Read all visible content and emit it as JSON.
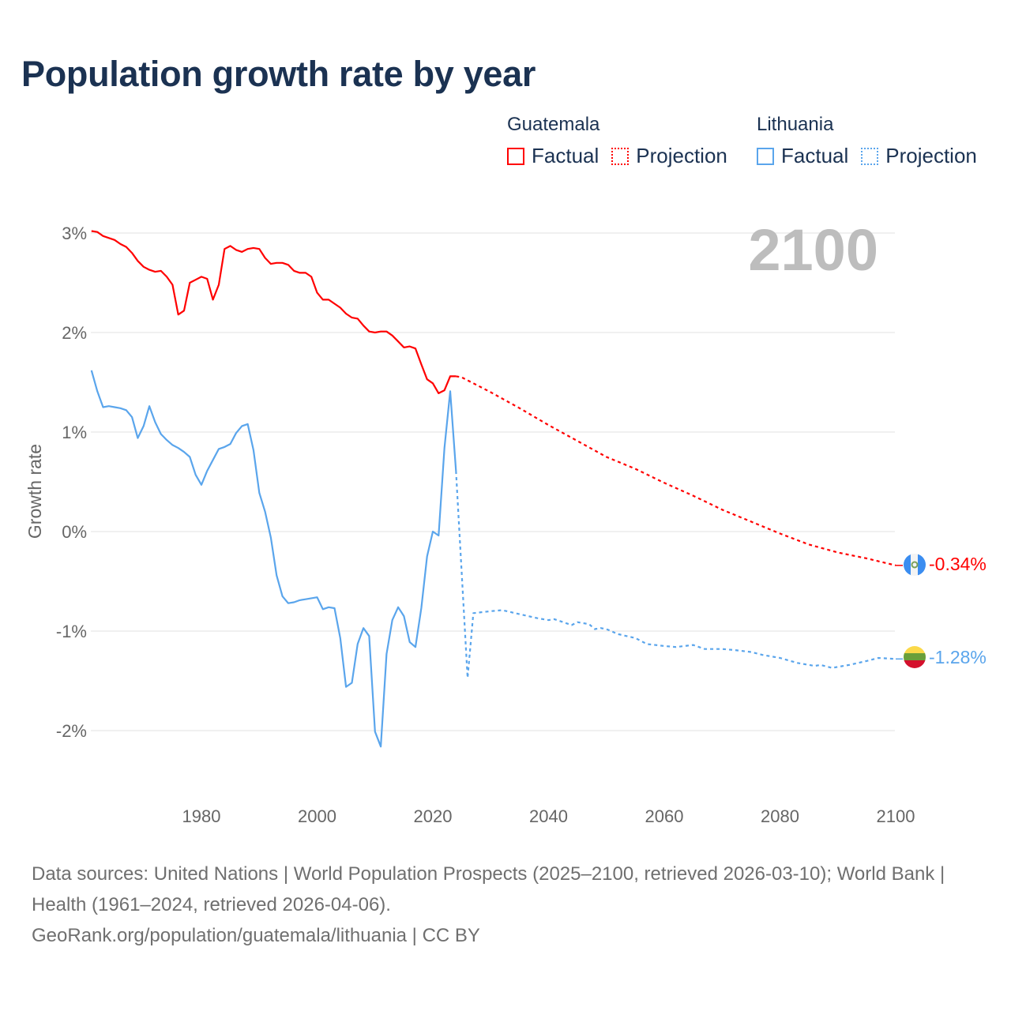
{
  "title": "Population growth rate by year",
  "legend": {
    "groups": [
      {
        "country": "Guatemala",
        "factual": "Factual",
        "projection": "Projection",
        "color": "#ff0000"
      },
      {
        "country": "Lithuania",
        "factual": "Factual",
        "projection": "Projection",
        "color": "#5aa5ec"
      }
    ]
  },
  "year_overlay": "2100",
  "end_labels": {
    "guatemala": "-0.34%",
    "lithuania": "-1.28%"
  },
  "footer": {
    "sources": "Data sources: United Nations | World Population Prospects (2025–2100, retrieved 2026-03-10); World Bank | Health (1961–2024, retrieved 2026-04-06).",
    "link": "GeoRank.org/population/guatemala/lithuania | CC BY"
  },
  "chart_data": {
    "type": "line",
    "title": "Population growth rate by year",
    "xlabel": "",
    "ylabel": "Growth rate",
    "xlim": [
      1961,
      2100
    ],
    "ylim": [
      -2.6,
      3.1
    ],
    "grid": true,
    "x_ticks": [
      1980,
      2000,
      2020,
      2040,
      2060,
      2080,
      2100
    ],
    "x_tick_labels": [
      "1980",
      "2000",
      "2020",
      "2040",
      "2060",
      "2080",
      "2100"
    ],
    "y_ticks": [
      3,
      2,
      1,
      0,
      -1,
      -2
    ],
    "y_tick_labels": [
      "3%",
      "2%",
      "1%",
      "0%",
      "-1%",
      "-2%"
    ],
    "legend_placement": "top-right",
    "series": [
      {
        "name": "Guatemala Factual",
        "color": "#ff0000",
        "style": "solid",
        "x_start": 1961,
        "values": [
          3.02,
          3.01,
          2.97,
          2.95,
          2.93,
          2.89,
          2.86,
          2.8,
          2.72,
          2.66,
          2.63,
          2.61,
          2.62,
          2.56,
          2.48,
          2.18,
          2.22,
          2.5,
          2.53,
          2.56,
          2.54,
          2.33,
          2.48,
          2.84,
          2.87,
          2.83,
          2.81,
          2.84,
          2.85,
          2.84,
          2.75,
          2.69,
          2.7,
          2.7,
          2.68,
          2.62,
          2.6,
          2.6,
          2.56,
          2.4,
          2.33,
          2.33,
          2.29,
          2.25,
          2.19,
          2.15,
          2.14,
          2.07,
          2.01,
          2.0,
          2.01,
          2.01,
          1.97,
          1.91,
          1.85,
          1.86,
          1.84,
          1.68,
          1.53,
          1.49,
          1.39,
          1.42,
          1.56,
          1.56
        ]
      },
      {
        "name": "Guatemala Projection",
        "color": "#ff0000",
        "style": "dotted",
        "x": [
          2024,
          2025,
          2030,
          2035,
          2040,
          2045,
          2050,
          2055,
          2060,
          2065,
          2070,
          2075,
          2080,
          2085,
          2090,
          2095,
          2100
        ],
        "values": [
          1.56,
          1.55,
          1.4,
          1.24,
          1.07,
          0.91,
          0.75,
          0.63,
          0.49,
          0.36,
          0.22,
          0.1,
          -0.02,
          -0.13,
          -0.21,
          -0.27,
          -0.34
        ]
      },
      {
        "name": "Lithuania Factual",
        "color": "#5aa5ec",
        "style": "solid",
        "x_start": 1961,
        "values": [
          1.62,
          1.41,
          1.25,
          1.26,
          1.25,
          1.24,
          1.22,
          1.15,
          0.94,
          1.06,
          1.26,
          1.1,
          0.98,
          0.92,
          0.87,
          0.84,
          0.8,
          0.75,
          0.57,
          0.47,
          0.61,
          0.72,
          0.83,
          0.85,
          0.88,
          0.99,
          1.06,
          1.08,
          0.82,
          0.39,
          0.2,
          -0.06,
          -0.44,
          -0.65,
          -0.72,
          -0.71,
          -0.69,
          -0.68,
          -0.67,
          -0.66,
          -0.78,
          -0.76,
          -0.77,
          -1.07,
          -1.56,
          -1.52,
          -1.13,
          -0.97,
          -1.05,
          -2.01,
          -2.16,
          -1.23,
          -0.89,
          -0.76,
          -0.85,
          -1.11,
          -1.16,
          -0.77,
          -0.25,
          0.0,
          -0.04,
          0.84,
          1.41,
          0.61
        ]
      },
      {
        "name": "Lithuania Projection",
        "color": "#5aa5ec",
        "style": "dotted",
        "x": [
          2024,
          2026,
          2027,
          2030,
          2032,
          2035,
          2038,
          2040,
          2041,
          2043,
          2044,
          2045,
          2047,
          2048,
          2049,
          2050,
          2052,
          2055,
          2057,
          2060,
          2062,
          2065,
          2067,
          2070,
          2072,
          2075,
          2077,
          2080,
          2083,
          2086,
          2087,
          2089,
          2092,
          2095,
          2097,
          2100
        ],
        "values": [
          0.61,
          -1.47,
          -0.82,
          -0.8,
          -0.79,
          -0.83,
          -0.87,
          -0.89,
          -0.88,
          -0.92,
          -0.94,
          -0.91,
          -0.93,
          -0.98,
          -0.97,
          -0.98,
          -1.03,
          -1.07,
          -1.13,
          -1.15,
          -1.16,
          -1.14,
          -1.18,
          -1.18,
          -1.19,
          -1.21,
          -1.24,
          -1.27,
          -1.32,
          -1.35,
          -1.34,
          -1.37,
          -1.34,
          -1.3,
          -1.27,
          -1.28
        ]
      }
    ]
  }
}
